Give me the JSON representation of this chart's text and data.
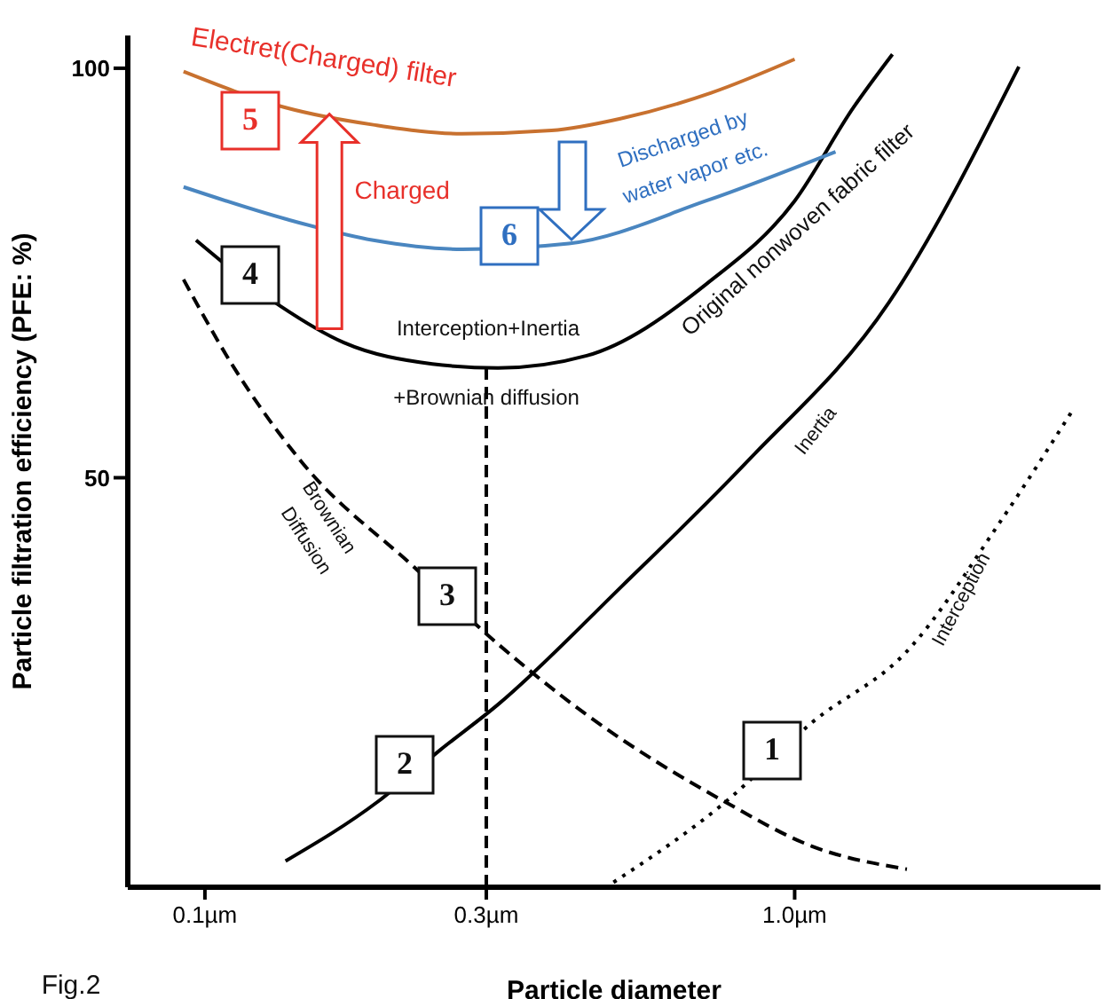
{
  "chart_data": {
    "type": "line",
    "xlabel": "Particle diameter",
    "ylabel": "Particle filtration efficiency (PFE: %)",
    "log": "x",
    "xlim": [
      0.074,
      3.3
    ],
    "ylim": [
      0,
      104
    ],
    "xticks": [
      {
        "value": 0.1,
        "label": "0.1µm"
      },
      {
        "value": 0.3,
        "label": "0.3µm"
      },
      {
        "value": 1.0,
        "label": "1.0µm"
      }
    ],
    "yticks": [
      50,
      100
    ],
    "series": [
      {
        "color": "#000000",
        "line_style": "dotted",
        "x": [
          0.493,
          0.763,
          1.07,
          1.55,
          2.24,
          2.97
        ],
        "values": [
          0.6,
          10.4,
          20.1,
          28.8,
          44.8,
          58.4
        ]
      },
      {
        "color": "#000000",
        "line_style": "solid",
        "x": [
          0.137,
          0.196,
          0.25,
          0.314,
          0.51,
          0.829,
          1.445,
          2.4
        ],
        "values": [
          3.2,
          10.4,
          16.7,
          22.3,
          36.8,
          51.9,
          71.4,
          100.2
        ]
      },
      {
        "color": "#000000",
        "line_style": "dashed",
        "x": [
          0.092,
          0.111,
          0.146,
          0.227,
          0.314,
          0.445,
          0.763,
          1.07,
          1.55
        ],
        "values": [
          74.2,
          63.9,
          51.9,
          39.0,
          29.7,
          21.0,
          10.4,
          5.0,
          2.2
        ]
      },
      {
        "color": "#000000",
        "line_style": "solid",
        "x": [
          0.0966,
          0.134,
          0.172,
          0.243,
          0.314,
          0.444,
          0.707,
          1.0,
          1.258,
          1.465
        ],
        "values": [
          79.0,
          71.0,
          66.5,
          63.9,
          63.4,
          64.9,
          73.6,
          83.8,
          95.2,
          101.7
        ]
      },
      {
        "color": "#c8712f",
        "line_style": "solid",
        "x": [
          0.092,
          0.137,
          0.193,
          0.273,
          0.387,
          0.51,
          0.722,
          1.0
        ],
        "values": [
          99.6,
          95.2,
          93.1,
          92.0,
          92.4,
          93.9,
          97.0,
          101.1
        ]
      },
      {
        "color": "#4a86c0",
        "line_style": "solid",
        "x": [
          0.092,
          0.137,
          0.193,
          0.273,
          0.414,
          0.707,
          1.173
        ],
        "values": [
          85.5,
          81.6,
          79.0,
          77.9,
          78.6,
          83.8,
          89.8
        ]
      },
      {
        "color": "#000000",
        "line_style": "dashed",
        "x": [
          0.3,
          0.3
        ],
        "values": [
          0,
          63.4
        ]
      }
    ],
    "annotations": [
      {
        "text": "Electret(Charged) filter",
        "x": 0.193,
        "y": 93.1
      },
      "5",
      {
        "text": "Charged",
        "x": 0.1626,
        "y": 94.4
      },
      "Discharged by",
      "water vapor etc.",
      "6",
      "4",
      "Interception+Inertia",
      "+Brownian diffusion",
      "Original nonwoven fabric filter",
      "Inertia",
      "Interception",
      "Brownian",
      "Diffusion",
      "3",
      "2",
      "1",
      "Fig.2"
    ]
  }
}
